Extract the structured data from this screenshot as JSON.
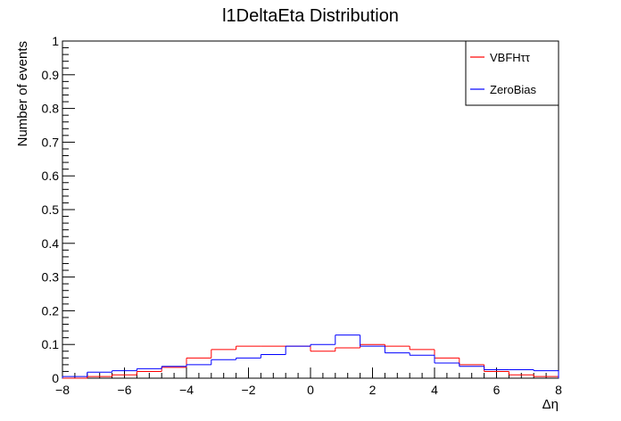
{
  "chart_data": {
    "type": "line",
    "title": "l1DeltaEta Distribution",
    "xlabel": "Δη",
    "ylabel": "Number of events",
    "xlim": [
      -8,
      8
    ],
    "ylim": [
      0,
      1
    ],
    "xticks": [
      -8,
      -6,
      -4,
      -2,
      0,
      2,
      4,
      6,
      8
    ],
    "xtick_labels": [
      "−8",
      "−6",
      "−4",
      "−2",
      "0",
      "2",
      "4",
      "6",
      "8"
    ],
    "yticks": [
      0,
      0.1,
      0.2,
      0.3,
      0.4,
      0.5,
      0.6,
      0.7,
      0.8,
      0.9,
      1
    ],
    "ytick_labels": [
      "0",
      "0.1",
      "0.2",
      "0.3",
      "0.4",
      "0.5",
      "0.6",
      "0.7",
      "0.8",
      "0.9",
      "1"
    ],
    "grid": false,
    "legend_position": "top-right",
    "bin_edges": [
      -8,
      -7.2,
      -6.4,
      -5.6,
      -4.8,
      -4,
      -3.2,
      -2.4,
      -1.6,
      -0.8,
      0,
      0.8,
      1.6,
      2.4,
      3.2,
      4,
      4.8,
      5.6,
      6.4,
      7.2,
      8
    ],
    "series": [
      {
        "name": "VBFHττ",
        "color": "#ff0000",
        "values": [
          0.0,
          0.005,
          0.01,
          0.02,
          0.032,
          0.06,
          0.085,
          0.095,
          0.095,
          0.095,
          0.08,
          0.09,
          0.1,
          0.095,
          0.085,
          0.06,
          0.04,
          0.02,
          0.01,
          0.005
        ]
      },
      {
        "name": "ZeroBias",
        "color": "#0000ff",
        "values": [
          0.005,
          0.018,
          0.022,
          0.028,
          0.035,
          0.04,
          0.055,
          0.06,
          0.07,
          0.095,
          0.1,
          0.128,
          0.095,
          0.075,
          0.068,
          0.045,
          0.035,
          0.025,
          0.025,
          0.022
        ]
      }
    ]
  }
}
